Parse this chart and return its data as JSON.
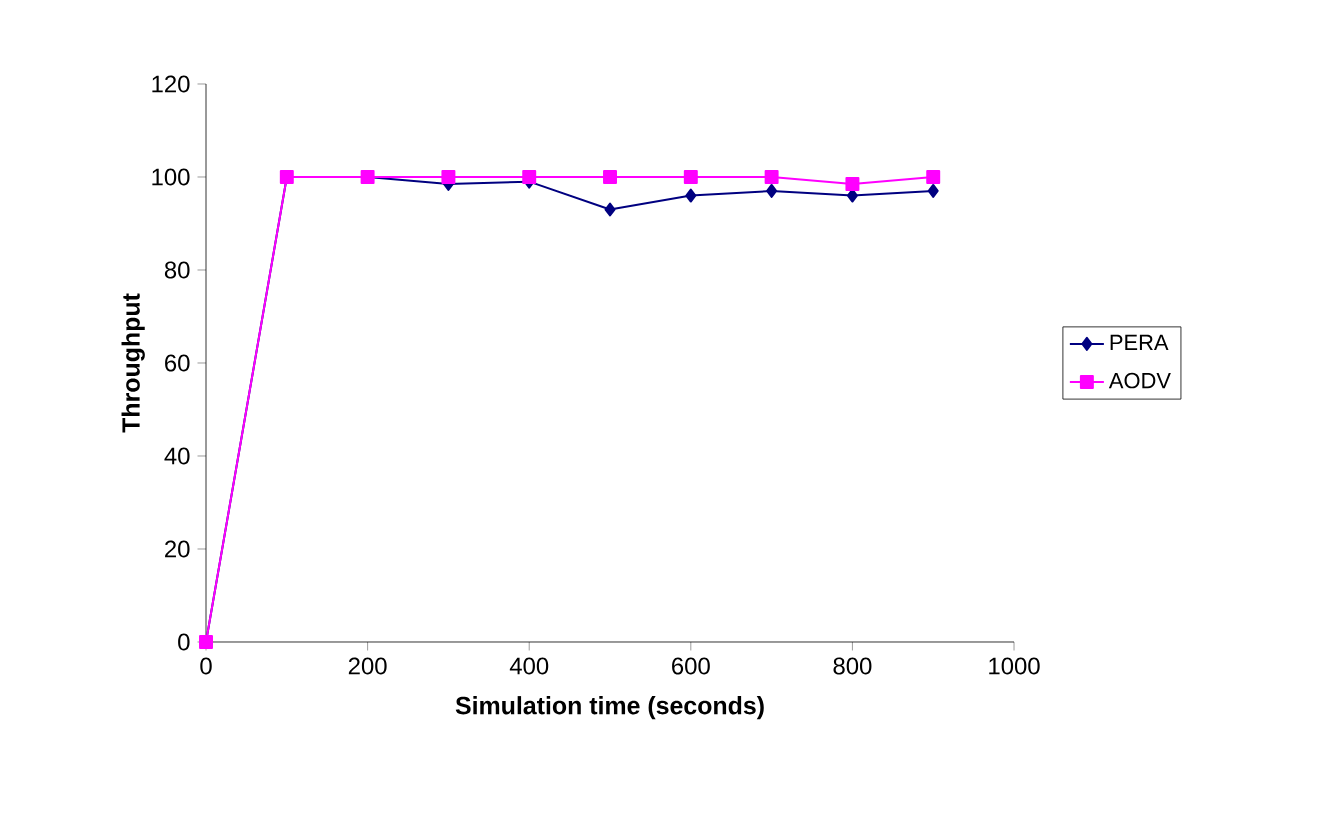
{
  "chart_data": {
    "type": "line",
    "xlabel": "Simulation time (seconds)",
    "ylabel": "Throughput",
    "x": [
      0,
      100,
      200,
      300,
      400,
      500,
      600,
      700,
      800,
      900
    ],
    "series": [
      {
        "name": "PERA",
        "color": "#000080",
        "marker": "diamond",
        "values": [
          0,
          100,
          100,
          98.5,
          99,
          93,
          96,
          97,
          96,
          97
        ]
      },
      {
        "name": "AODV",
        "color": "#ff00ff",
        "marker": "square",
        "values": [
          0,
          100,
          100,
          100,
          100,
          100,
          100,
          100,
          98.5,
          100
        ]
      }
    ],
    "xlim": [
      0,
      1000
    ],
    "xticks": [
      0,
      200,
      400,
      600,
      800,
      1000
    ],
    "ylim": [
      0,
      120
    ],
    "yticks": [
      0,
      20,
      40,
      60,
      80,
      100,
      120
    ],
    "grid": false,
    "legend": "right"
  }
}
